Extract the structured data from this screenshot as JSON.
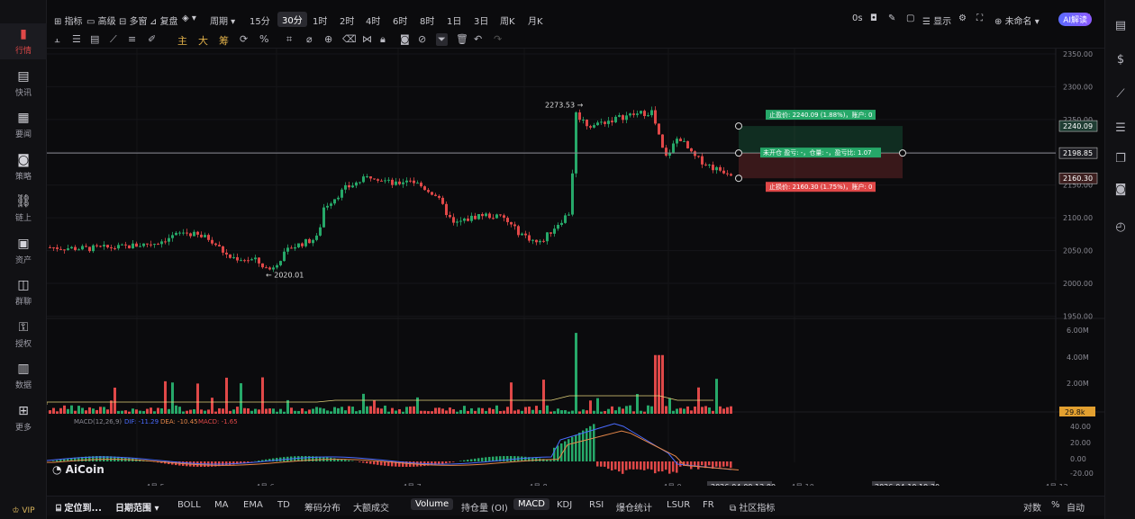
{
  "leftnav": [
    {
      "label": "行情",
      "icon": "bar-chart-icon",
      "active": true
    },
    {
      "label": "快讯",
      "icon": "news-flash-icon"
    },
    {
      "label": "要闻",
      "icon": "document-icon"
    },
    {
      "label": "策略",
      "icon": "robot-icon"
    },
    {
      "label": "链上",
      "icon": "chain-icon"
    },
    {
      "label": "资产",
      "icon": "wallet-icon"
    },
    {
      "label": "群聊",
      "icon": "chat-icon"
    },
    {
      "label": "授权",
      "icon": "key-icon"
    },
    {
      "label": "数据",
      "icon": "data-icon"
    },
    {
      "label": "更多",
      "icon": "grid-icon"
    }
  ],
  "vip": "VIP",
  "topbar": {
    "items": [
      "指标",
      "高级",
      "多窗",
      "复盘",
      "周期",
      "15分",
      "30分",
      "1时",
      "2时",
      "4时",
      "6时",
      "8时",
      "1日",
      "3日",
      "周K",
      "月K"
    ],
    "active": "30分",
    "right_items": [
      "0s",
      "显示",
      "未命名"
    ],
    "ai_badge": "AI解读"
  },
  "toolbar2": {
    "items": [
      "主",
      "大",
      "筹"
    ]
  },
  "price_axis": [
    "2350.00",
    "2300.00",
    "2250.00",
    "2200.00",
    "2150.00",
    "2100.00",
    "2050.00",
    "2000.00",
    "1950.00"
  ],
  "price_tags": {
    "take_profit": "2240.09",
    "current": "2198.85",
    "stop_loss": "2160.30"
  },
  "volume_axis": [
    "6.00M",
    "4.00M",
    "2.00M"
  ],
  "volume_tag": "29.8k",
  "macd_axis": [
    "40.00",
    "20.00",
    "0.00",
    "-20.00"
  ],
  "macd_legend": {
    "name": "MACD(12,26,9)",
    "dif": "DIF: -11.29",
    "dea": "DEA: -10.45",
    "macd": "MACD: -1.65"
  },
  "annotations": {
    "high": "2273.53",
    "low": "2020.01"
  },
  "position_tool": {
    "take_profit": "止盈价: 2240.09 (1.88%)，账户: 0",
    "center": "未开仓 盈亏: -，仓量: -，盈亏比: 1.07",
    "stop_loss": "止损价: 2160.30 (1.75%)，账户: 0"
  },
  "time_axis": [
    "4月 5",
    "4月 6",
    "4月 7",
    "4月 8",
    "4月 9",
    "4月 10",
    "4月 12"
  ],
  "time_tags": {
    "left": "2026-04-09 13:00",
    "right": "2026-04-10 19:30"
  },
  "logo": "AiCoin",
  "bottombar": {
    "items": [
      "定位到...",
      "日期范围",
      "BOLL",
      "MA",
      "EMA",
      "TD",
      "筹码分布",
      "大额成交",
      "Volume",
      "持仓量 (OI)",
      "MACD",
      "KDJ",
      "RSI",
      "爆仓统计",
      "LSUR",
      "FR",
      "社区指标"
    ],
    "right": [
      "对数",
      "%",
      "自动"
    ]
  },
  "colors": {
    "up": "#26a869",
    "down": "#e04848",
    "accent": "#e3b24a"
  }
}
